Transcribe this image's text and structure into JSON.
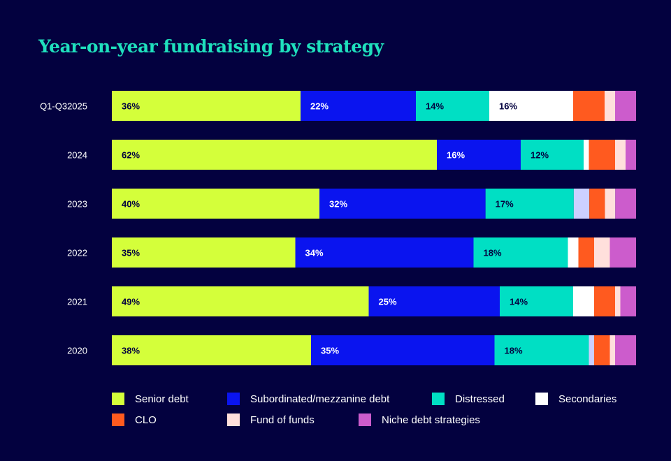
{
  "chart_data": {
    "type": "bar",
    "orientation": "horizontal",
    "stacked": true,
    "title": "Year-on-year fundraising by strategy",
    "categories": [
      "Q1-Q32025",
      "2024",
      "2023",
      "2022",
      "2021",
      "2020"
    ],
    "xlim": [
      0,
      100
    ],
    "grid": false,
    "legend_position": "bottom",
    "series": [
      {
        "name": "Senior debt",
        "color": "#d4ff3a",
        "values": [
          36,
          62,
          40,
          35,
          49,
          38
        ],
        "labels": [
          "36%",
          "62%",
          "40%",
          "35%",
          "49%",
          "38%"
        ]
      },
      {
        "name": "Subordinated/mezzanine debt",
        "color": "#0a14ef",
        "values": [
          22,
          16,
          32,
          34,
          25,
          35
        ],
        "labels": [
          "22%",
          "16%",
          "32%",
          "34%",
          "25%",
          "35%"
        ]
      },
      {
        "name": "Distressed",
        "color": "#00dfc4",
        "values": [
          14,
          12,
          17,
          18,
          14,
          18
        ],
        "labels": [
          "14%",
          "12%",
          "17%",
          "18%",
          "14%",
          "18%"
        ]
      },
      {
        "name": "Secondaries",
        "color": "#ffffff",
        "values": [
          16,
          1,
          0,
          2,
          4,
          0
        ],
        "labels": [
          "16%",
          "",
          "",
          "",
          "",
          ""
        ]
      },
      {
        "color": "#ccd0ff",
        "values": [
          0,
          0,
          3,
          0,
          0,
          1
        ],
        "labels": [
          "",
          "",
          "",
          "",
          "",
          ""
        ]
      },
      {
        "name": "CLO",
        "color": "#ff5a1f",
        "values": [
          6,
          5,
          3,
          3,
          4,
          3
        ],
        "labels": [
          "",
          "",
          "",
          "",
          "",
          ""
        ]
      },
      {
        "name": "Fund of funds",
        "color": "#ffe0dc",
        "values": [
          2,
          2,
          2,
          3,
          1,
          1
        ],
        "labels": [
          "",
          "",
          "",
          "",
          "",
          ""
        ]
      },
      {
        "name": "Niche debt strategies",
        "color": "#cc5ccc",
        "values": [
          4,
          2,
          4,
          5,
          3,
          4
        ],
        "labels": [
          "",
          "",
          "",
          "",
          "",
          ""
        ]
      }
    ]
  }
}
